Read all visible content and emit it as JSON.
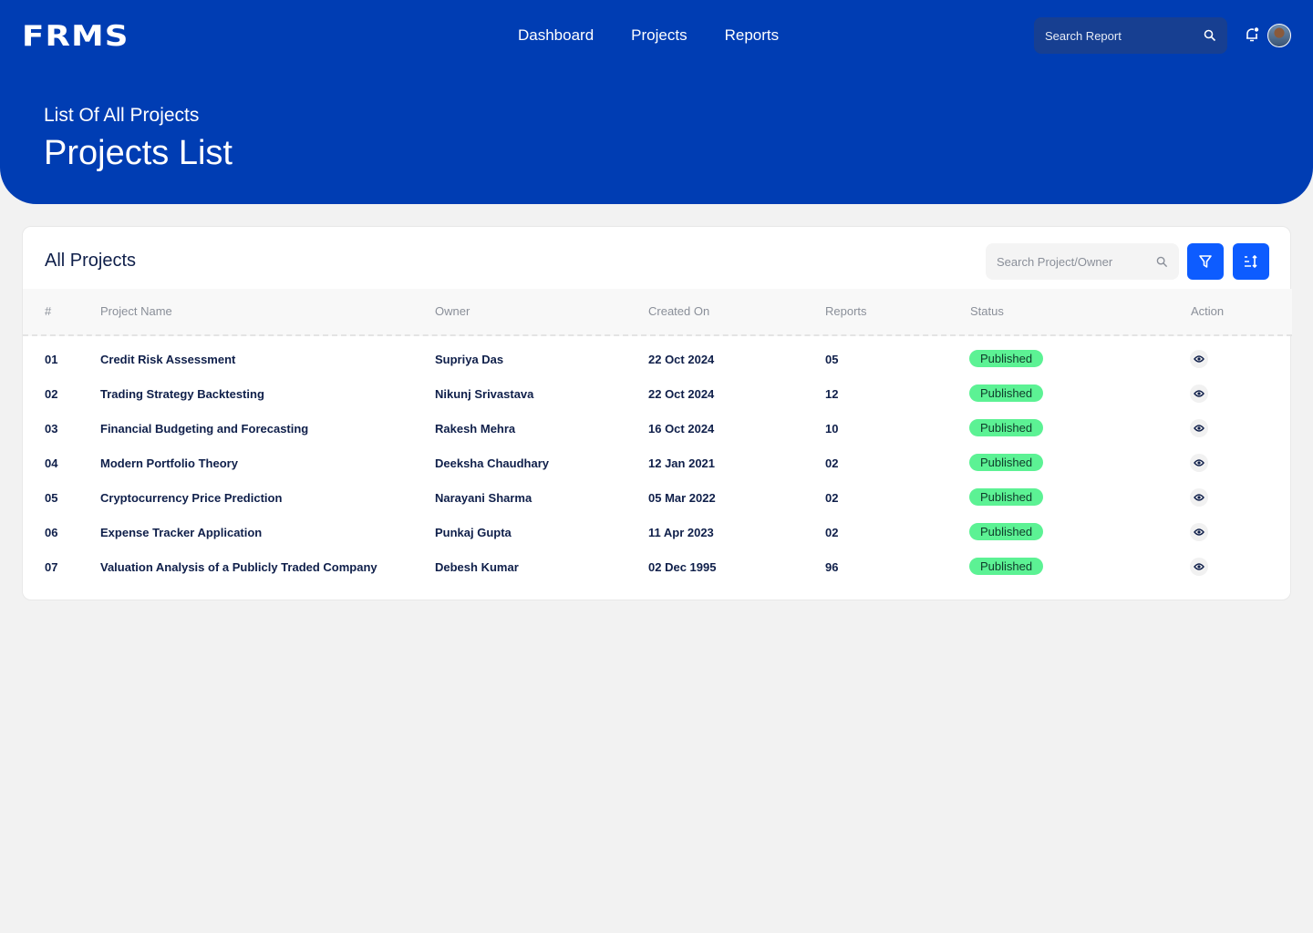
{
  "header": {
    "logo": "FRMS",
    "nav": [
      "Dashboard",
      "Projects",
      "Reports"
    ],
    "search_placeholder": "Search Report"
  },
  "hero": {
    "subtitle": "List Of All Projects",
    "title": "Projects List"
  },
  "card": {
    "title": "All Projects",
    "search_placeholder": "Search Project/Owner"
  },
  "table": {
    "columns": [
      "#",
      "Project Name",
      "Owner",
      "Created On",
      "Reports",
      "Status",
      "Action"
    ],
    "rows": [
      [
        "01",
        "Credit Risk Assessment",
        "Supriya Das",
        "22 Oct 2024",
        "05",
        "Published"
      ],
      [
        "02",
        "Trading Strategy Backtesting",
        "Nikunj Srivastava",
        "22 Oct 2024",
        "12",
        "Published"
      ],
      [
        "03",
        "Financial Budgeting and Forecasting",
        "Rakesh Mehra",
        "16 Oct 2024",
        "10",
        "Published"
      ],
      [
        "04",
        "Modern Portfolio Theory",
        "Deeksha Chaudhary",
        "12 Jan 2021",
        "02",
        "Published"
      ],
      [
        "05",
        "Cryptocurrency Price Prediction",
        "Narayani Sharma",
        "05 Mar 2022",
        "02",
        "Published"
      ],
      [
        "06",
        "Expense Tracker Application",
        "Punkaj Gupta",
        "11 Apr 2023",
        "02",
        "Published"
      ],
      [
        "07",
        "Valuation Analysis of a Publicly Traded Company",
        "Debesh Kumar",
        "02 Dec 1995",
        "96",
        "Published"
      ]
    ]
  },
  "colors": {
    "primary": "#003db3",
    "button": "#0d5cff",
    "published": "#5cf294"
  }
}
